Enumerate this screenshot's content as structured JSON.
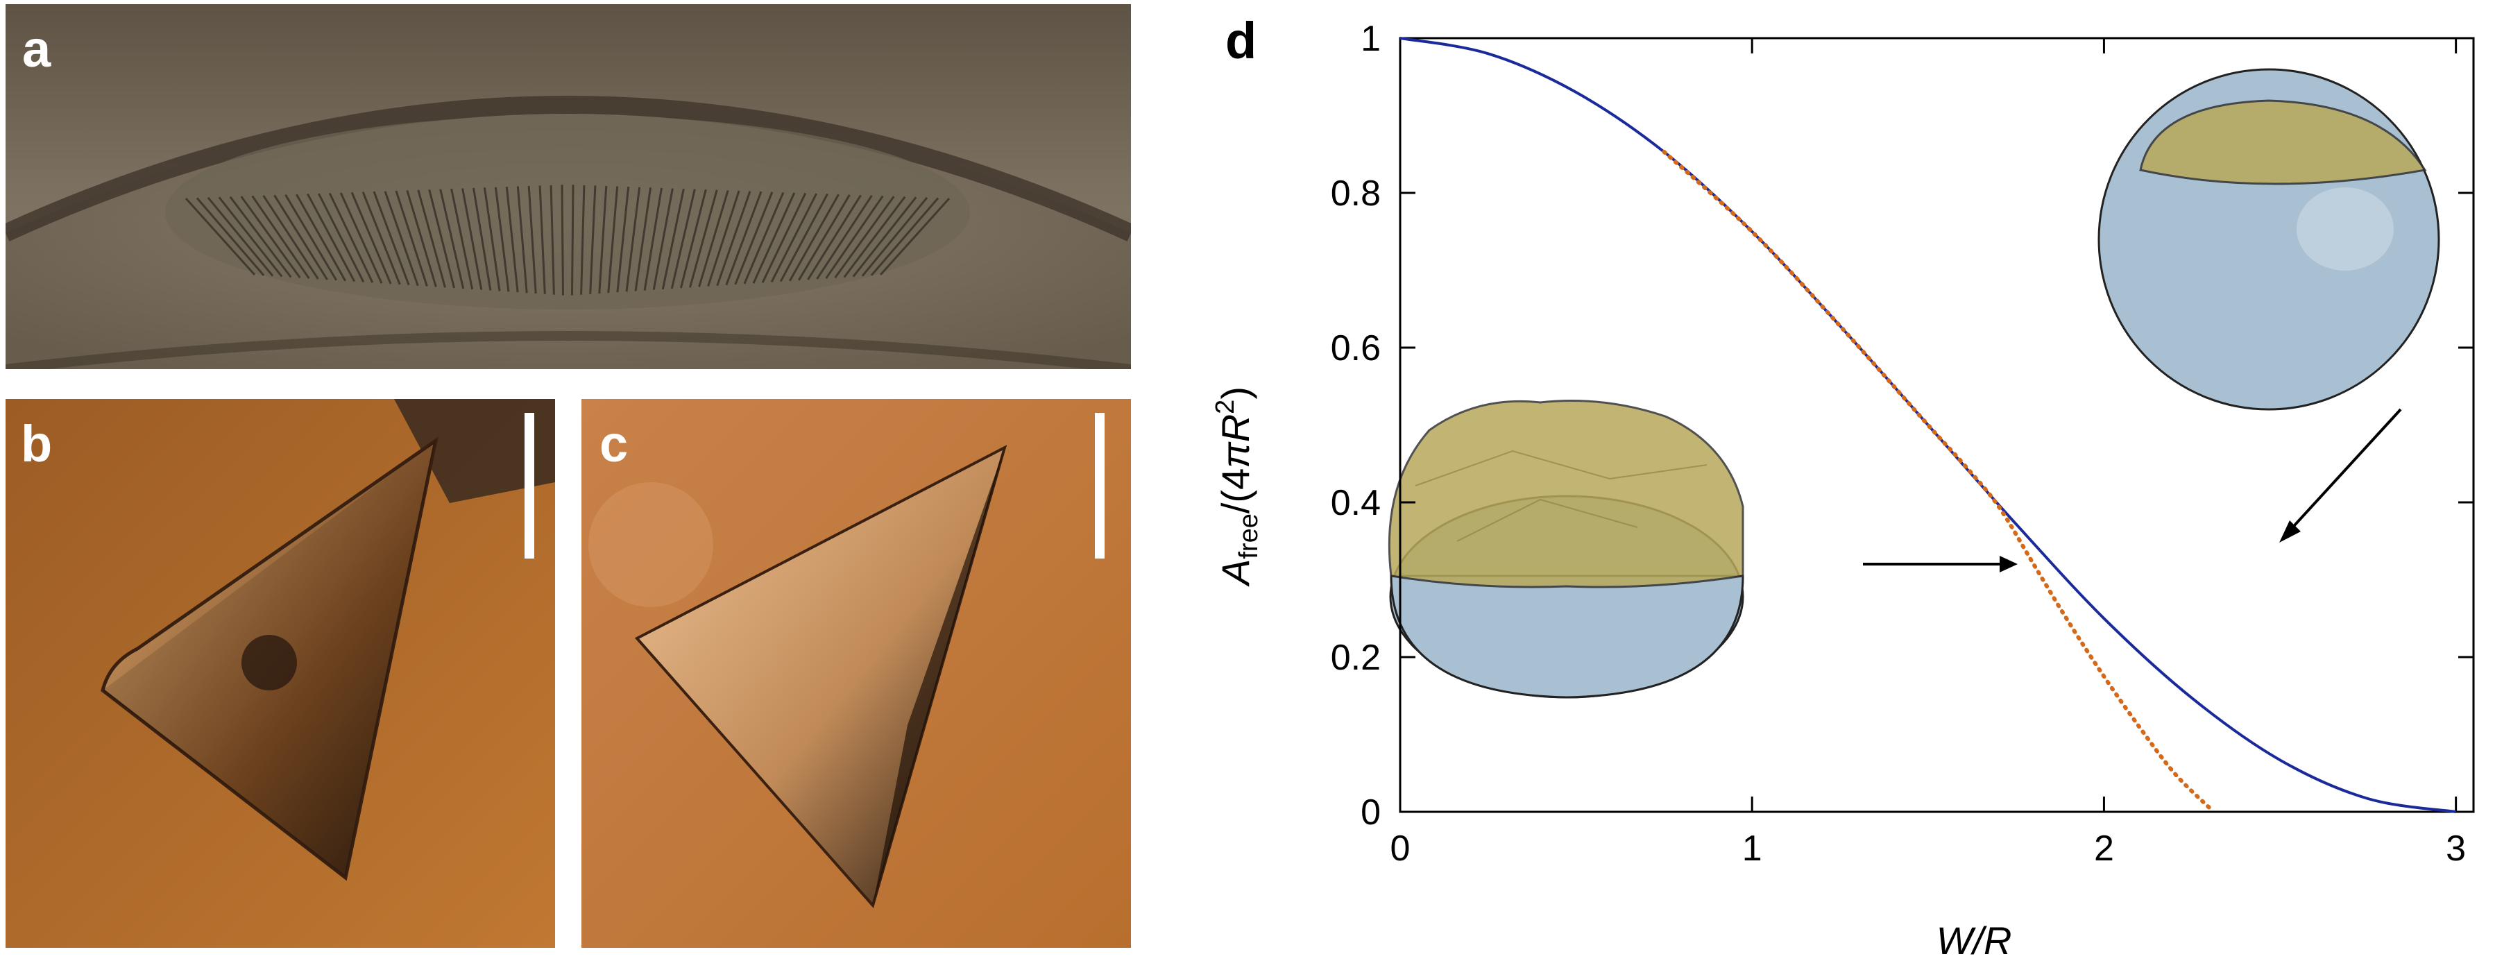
{
  "panels": {
    "a": {
      "label": "a"
    },
    "b": {
      "label": "b"
    },
    "c": {
      "label": "c"
    },
    "d": {
      "label": "d"
    }
  },
  "colors": {
    "ideal_curve": "#1a2a9a",
    "simulation_curve": "#d4691a",
    "cap": "#b8a85a",
    "sphere": "#a9c0d2",
    "photo_a_background": "#6a5c4a",
    "photo_bc_background": "#b86f2e",
    "scale_bar": "#ffffff"
  },
  "chart_data": {
    "type": "line",
    "xlabel": "W/R",
    "ylabel": "A_free/(4πR^2)",
    "xlim": [
      0,
      3.05
    ],
    "ylim": [
      0,
      1
    ],
    "xticks": [
      0,
      1,
      2,
      3
    ],
    "yticks": [
      0,
      0.2,
      0.4,
      0.6,
      0.8,
      1
    ],
    "xtick_labels": [
      "0",
      "1",
      "2",
      "3"
    ],
    "ytick_labels": [
      "0",
      "0.2",
      "0.4",
      "0.6",
      "0.8",
      "1"
    ],
    "grid": false,
    "series": [
      {
        "style": "solid",
        "color": "#1a2a9a",
        "x": [
          0,
          0.25,
          0.5,
          0.75,
          1.0,
          1.25,
          1.5,
          1.75,
          2.0,
          2.25,
          2.5,
          2.75,
          3.0
        ],
        "y": [
          1.0,
          0.98,
          0.93,
          0.853,
          0.75,
          0.628,
          0.5,
          0.372,
          0.25,
          0.147,
          0.067,
          0.017,
          0.0
        ]
      },
      {
        "style": "dotted",
        "color": "#d4691a",
        "x": [
          0.75,
          1.0,
          1.25,
          1.5,
          1.6,
          1.7,
          1.8,
          1.9,
          2.0,
          2.1,
          2.2,
          2.3
        ],
        "y": [
          0.853,
          0.75,
          0.628,
          0.5,
          0.45,
          0.395,
          0.32,
          0.245,
          0.175,
          0.11,
          0.05,
          0.005
        ]
      }
    ],
    "insets": [
      {
        "description_name": "smooth-cap-sphere",
        "points_to": {
          "x": 1.83,
          "y": 0.35
        }
      },
      {
        "description_name": "faceted-cap-sphere",
        "points_to": {
          "x": 1.76,
          "y": 0.325
        }
      }
    ]
  }
}
